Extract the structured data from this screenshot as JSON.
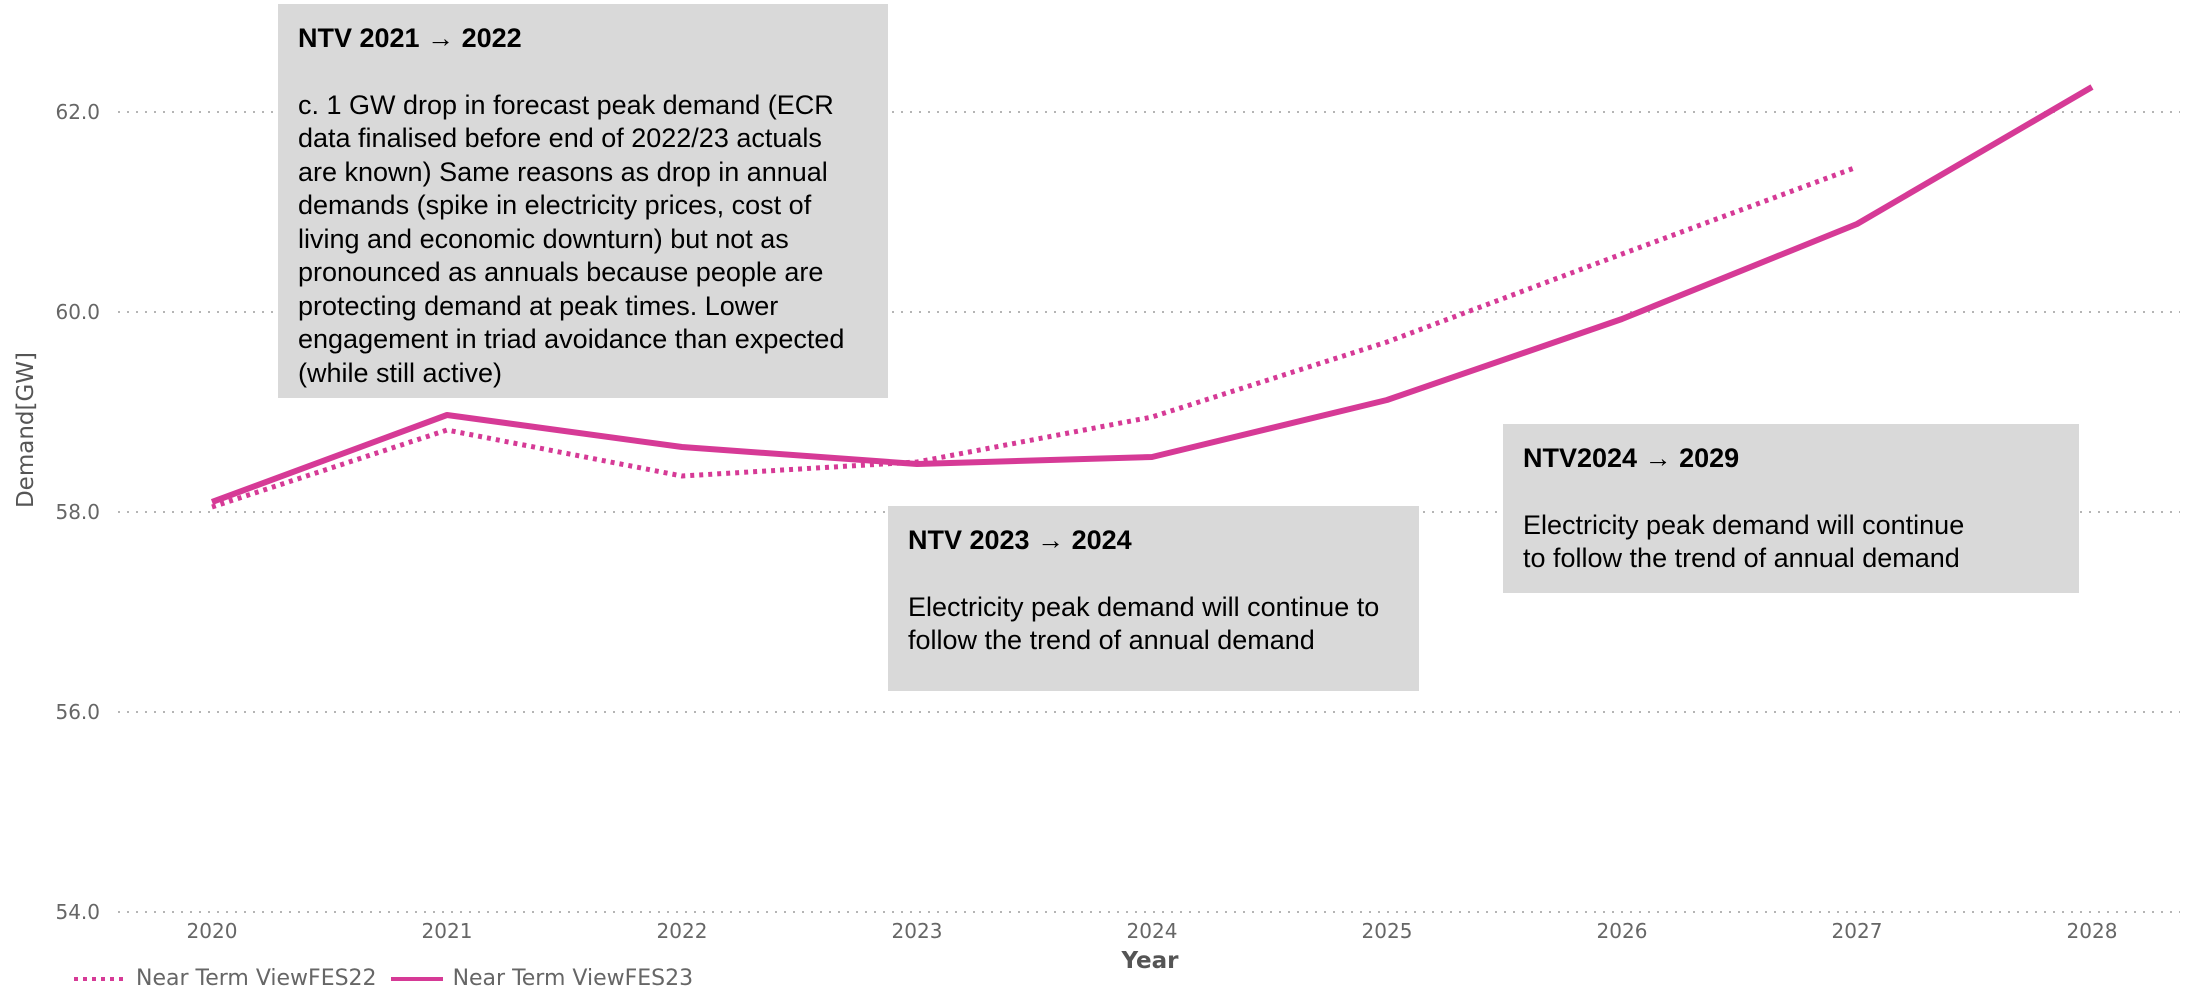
{
  "chart_data": {
    "type": "line",
    "xlabel": "Year",
    "ylabel": "Demand[GW]",
    "ylim": [
      54,
      62.6
    ],
    "yticks": [
      "54.0",
      "56.0",
      "58.0",
      "60.0",
      "62.0"
    ],
    "categories": [
      "2020",
      "2021",
      "2022",
      "2023",
      "2024",
      "2025",
      "2026",
      "2027",
      "2028"
    ],
    "grid": true,
    "legend_position": "bottom-left",
    "series": [
      {
        "name": "Near Term ViewFES22",
        "style": "dotted",
        "color": "#d63a96",
        "values": [
          58.05,
          58.82,
          58.36,
          58.5,
          58.95,
          59.7,
          60.58,
          61.45,
          null
        ]
      },
      {
        "name": "Near Term ViewFES23",
        "style": "solid",
        "color": "#d63a96",
        "values": [
          58.1,
          58.97,
          58.65,
          58.48,
          58.55,
          59.12,
          59.93,
          60.88,
          62.25
        ]
      }
    ],
    "annotations": [
      {
        "title": "NTV 2021 → 2022",
        "text": "c. 1 GW drop in forecast peak demand (ECR data finalised before end of 2022/23 actuals are known) Same reasons as drop in annual demands (spike in electricity prices, cost of living and economic downturn) but not as pronounced as annuals because people are protecting demand at peak times. Lower engagement in triad avoidance than expected (while still active)"
      },
      {
        "title": "NTV 2023 → 2024",
        "text": "Electricity peak demand will continue to follow the trend of annual demand"
      },
      {
        "title": "NTV2024 → 2029",
        "text": "Electricity peak demand will continue to follow the trend of annual demand"
      }
    ]
  }
}
